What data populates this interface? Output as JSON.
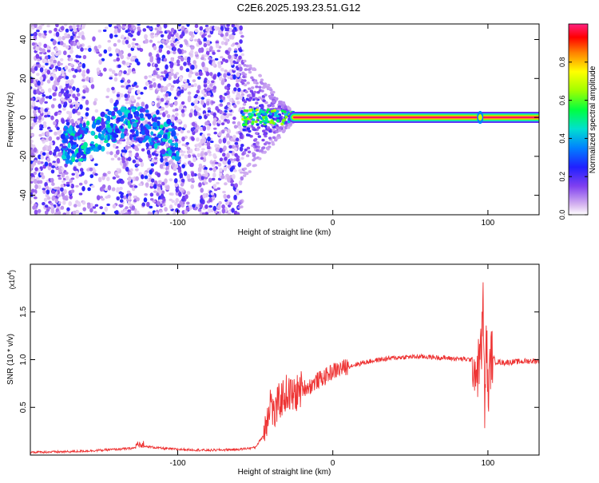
{
  "title": "C2E6.2025.193.23.51.G12",
  "colorbar": {
    "label": "Normalized spectral amplitude",
    "ticks": [
      "0.0",
      "0.2",
      "0.4",
      "0.6",
      "0.8"
    ],
    "tick_values": [
      0.0,
      0.2,
      0.4,
      0.6,
      0.8
    ],
    "range": [
      0,
      1
    ]
  },
  "chart_data": [
    {
      "type": "heatmap",
      "xlabel": "Height of straight line (km)",
      "ylabel": "Frequency (Hz)",
      "xlim": [
        -195,
        133
      ],
      "ylim": [
        -50,
        48
      ],
      "x_ticks": [
        -100,
        0,
        100
      ],
      "x_tick_labels": [
        "-100",
        "0",
        "100"
      ],
      "y_ticks": [
        -40,
        -20,
        0,
        20,
        40
      ],
      "y_tick_labels": [
        "-40",
        "-20",
        "0",
        "20",
        "40"
      ],
      "noise_region_x": [
        -195,
        -58
      ],
      "transition_region_x": [
        -58,
        -25
      ],
      "carrier_line": {
        "x_start": -25,
        "x_end": 133,
        "frequency": 0,
        "amplitude": 0.98
      },
      "carrier_spike_x": 95,
      "scatter_band": {
        "x_range": [
          -175,
          -100
        ],
        "frequency_range": [
          -25,
          10
        ],
        "peak_amplitude": 0.5
      },
      "colormap": [
        "#ffffff",
        "#d8b8f0",
        "#9050f0",
        "#5010e0",
        "#0050ff",
        "#00d0e0",
        "#00ff40",
        "#ffff00",
        "#ff8000",
        "#ff0000",
        "#ff2080"
      ]
    },
    {
      "type": "line",
      "xlabel": "Height of straight line (km)",
      "ylabel": "SNR (10 * v/v)",
      "multiplier": "(x10",
      "multiplier_exp": "4",
      "multiplier_close": ")",
      "xlim": [
        -195,
        133
      ],
      "ylim": [
        0,
        2.0
      ],
      "x_ticks": [
        -100,
        0,
        100
      ],
      "x_tick_labels": [
        "-100",
        "0",
        "100"
      ],
      "y_ticks": [
        0.5,
        1.0,
        1.5
      ],
      "y_tick_labels": [
        "0.5",
        "1.0",
        "1.5"
      ],
      "color": "#ee3333",
      "x": [
        -195,
        -170,
        -150,
        -130,
        -120,
        -110,
        -100,
        -80,
        -60,
        -50,
        -45,
        -40,
        -38,
        -35,
        -30,
        -25,
        -20,
        -15,
        -10,
        -5,
        0,
        10,
        20,
        30,
        40,
        50,
        60,
        70,
        80,
        90,
        93,
        96,
        97,
        98,
        99,
        100,
        102,
        105,
        110,
        120,
        133
      ],
      "values": [
        0.03,
        0.035,
        0.05,
        0.07,
        0.09,
        0.07,
        0.06,
        0.05,
        0.06,
        0.08,
        0.2,
        0.6,
        0.4,
        0.55,
        0.65,
        0.62,
        0.7,
        0.72,
        0.78,
        0.82,
        0.88,
        0.93,
        0.97,
        1.0,
        1.02,
        1.03,
        1.03,
        1.02,
        1.01,
        1.0,
        0.85,
        1.15,
        1.7,
        0.3,
        1.4,
        0.6,
        1.05,
        0.98,
        0.97,
        0.98,
        0.99
      ]
    }
  ]
}
